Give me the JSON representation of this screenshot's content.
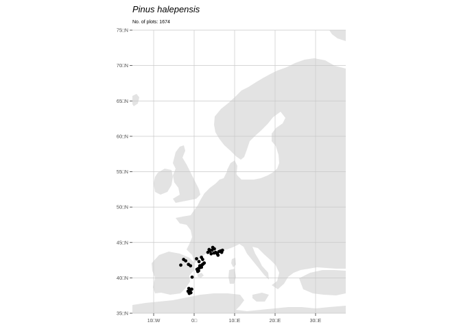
{
  "title": "Pinus halepensis",
  "subtitle": "No. of plots: 1674",
  "colors": {
    "land": "#e3e3e3",
    "grid": "#c8c8c8",
    "points": "#000000",
    "axis_text": "#4d4d4d"
  },
  "axes": {
    "lat_labels": [
      "75□N",
      "70□N",
      "65□N",
      "60□N",
      "55□N",
      "50□N",
      "45□N",
      "40□N",
      "35□N"
    ],
    "lon_labels": [
      "10□W",
      "0□",
      "10□E",
      "20□E",
      "30□E"
    ]
  },
  "chart_data": {
    "type": "scatter",
    "x_unit": "longitude",
    "y_unit": "latitude",
    "xlim": [
      -15,
      37
    ],
    "ylim": [
      35,
      75
    ],
    "x_ticks": [
      -10,
      0,
      10,
      20,
      30
    ],
    "y_ticks": [
      35,
      40,
      45,
      50,
      55,
      60,
      65,
      70,
      75
    ],
    "grid": true,
    "points": [
      [
        -1.3,
        38.5
      ],
      [
        -1.0,
        38.2
      ],
      [
        -0.8,
        37.9
      ],
      [
        -1.2,
        37.8
      ],
      [
        -0.6,
        38.4
      ],
      [
        -1.5,
        38.1
      ],
      [
        0.7,
        41.2
      ],
      [
        1.0,
        41.3
      ],
      [
        1.3,
        41.4
      ],
      [
        1.6,
        41.6
      ],
      [
        1.9,
        41.8
      ],
      [
        2.1,
        41.9
      ],
      [
        1.4,
        41.7
      ],
      [
        1.8,
        41.5
      ],
      [
        2.3,
        42.0
      ],
      [
        2.5,
        42.1
      ],
      [
        1.1,
        41.0
      ],
      [
        0.9,
        40.9
      ],
      [
        1.2,
        42.3
      ],
      [
        0.6,
        42.7
      ],
      [
        -0.9,
        41.7
      ],
      [
        -1.4,
        41.9
      ],
      [
        -2.1,
        42.4
      ],
      [
        -2.6,
        42.6
      ],
      [
        -3.3,
        41.8
      ],
      [
        -0.5,
        40.1
      ],
      [
        3.4,
        43.6
      ],
      [
        3.9,
        43.8
      ],
      [
        4.4,
        43.9
      ],
      [
        4.9,
        43.5
      ],
      [
        5.3,
        43.6
      ],
      [
        5.7,
        43.4
      ],
      [
        6.1,
        43.7
      ],
      [
        6.5,
        43.8
      ],
      [
        7.0,
        43.9
      ],
      [
        5.0,
        44.1
      ],
      [
        4.6,
        44.3
      ],
      [
        3.7,
        44.0
      ],
      [
        5.9,
        43.2
      ],
      [
        6.8,
        43.6
      ],
      [
        4.2,
        43.4
      ],
      [
        2.1,
        42.6
      ],
      [
        1.8,
        42.9
      ]
    ]
  }
}
